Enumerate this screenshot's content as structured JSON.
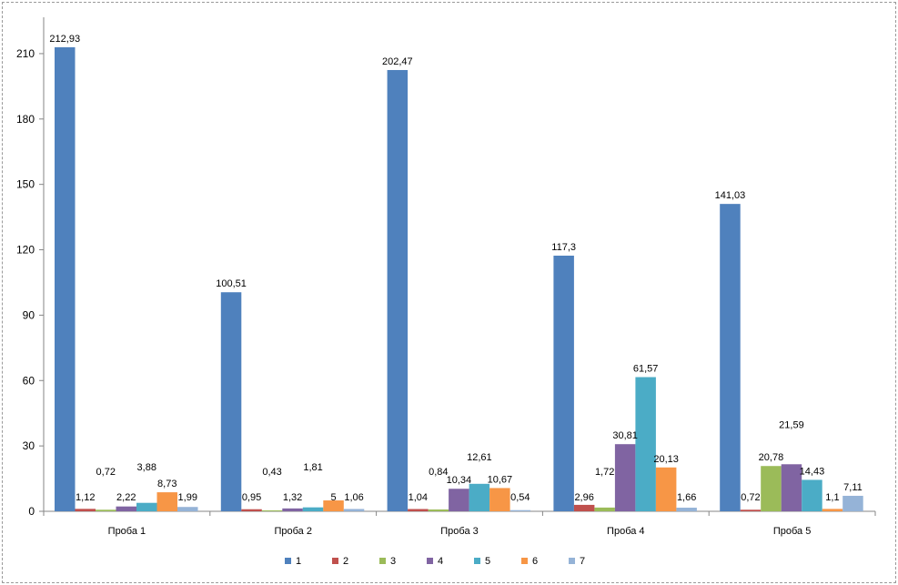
{
  "chart_data": {
    "type": "bar",
    "title": "",
    "xlabel": "",
    "ylabel": "",
    "ylim": [
      0,
      225
    ],
    "yticks": [
      0,
      30,
      60,
      90,
      120,
      150,
      180,
      210
    ],
    "categories": [
      "Проба 1",
      "Проба 2",
      "Проба 3",
      "Проба 4",
      "Проба 5"
    ],
    "series": [
      {
        "name": "1",
        "color": "#4f81bd",
        "values": [
          212.93,
          100.51,
          202.47,
          117.3,
          141.03
        ],
        "labels": [
          "212,93",
          "100,51",
          "202,47",
          "117,3",
          "141,03"
        ]
      },
      {
        "name": "2",
        "color": "#c0504d",
        "values": [
          1.12,
          0.95,
          1.04,
          2.96,
          0.72
        ],
        "labels": [
          "1,12",
          "0,95",
          "1,04",
          "2,96",
          "0,72"
        ]
      },
      {
        "name": "3",
        "color": "#9bbb59",
        "values": [
          0.72,
          0.43,
          0.84,
          1.72,
          20.78
        ],
        "labels": [
          "0,72",
          "0,43",
          "0,84",
          "1,72",
          "20,78"
        ]
      },
      {
        "name": "4",
        "color": "#8064a2",
        "values": [
          2.22,
          1.32,
          10.34,
          30.81,
          21.59
        ],
        "labels": [
          "2,22",
          "1,32",
          "10,34",
          "30,81",
          "21,59"
        ]
      },
      {
        "name": "5",
        "color": "#4bacc6",
        "values": [
          3.88,
          1.81,
          12.61,
          61.57,
          14.43
        ],
        "labels": [
          "3,88",
          "1,81",
          "12,61",
          "61,57",
          "14,43"
        ]
      },
      {
        "name": "6",
        "color": "#f79646",
        "values": [
          8.73,
          5,
          10.67,
          20.13,
          1.1
        ],
        "labels": [
          "8,73",
          "5",
          "10,67",
          "20,13",
          "1,1"
        ]
      },
      {
        "name": "7",
        "color": "#95b3d7",
        "values": [
          1.99,
          1.06,
          0.54,
          1.66,
          7.11
        ],
        "labels": [
          "1,99",
          "1,06",
          "0,54",
          "1,66",
          "7,11"
        ]
      }
    ],
    "legend_position": "bottom",
    "grid": false
  }
}
